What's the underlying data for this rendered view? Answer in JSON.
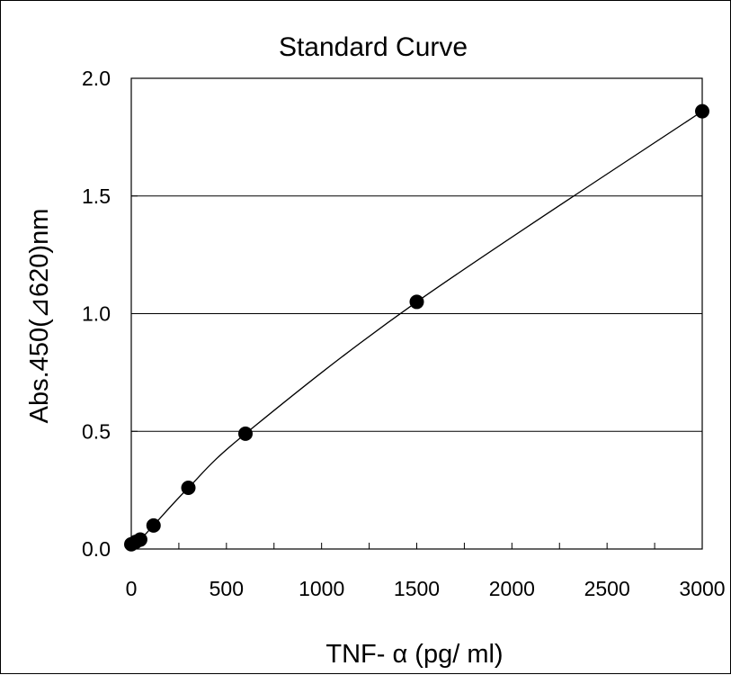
{
  "chart_data": {
    "type": "scatter",
    "title": "Standard Curve",
    "xlabel": "TNF- α (pg/ ml)",
    "ylabel": "Abs.450(⊿620)nm",
    "xlim": [
      0,
      3000
    ],
    "ylim": [
      0,
      2.0
    ],
    "x_ticks": [
      "0",
      "500",
      "1000",
      "1500",
      "2000",
      "2500",
      "3000"
    ],
    "y_ticks": [
      "0.0",
      "0.5",
      "1.0",
      "1.5",
      "2.0"
    ],
    "grid": "horizontal",
    "series": [
      {
        "points": [
          {
            "x": 0,
            "y": 0.02
          },
          {
            "x": 23,
            "y": 0.03
          },
          {
            "x": 47,
            "y": 0.04
          },
          {
            "x": 117,
            "y": 0.1
          },
          {
            "x": 300,
            "y": 0.26
          },
          {
            "x": 600,
            "y": 0.49
          },
          {
            "x": 1500,
            "y": 1.05
          },
          {
            "x": 3000,
            "y": 1.86
          }
        ]
      }
    ],
    "curve": "smooth fit through points"
  }
}
